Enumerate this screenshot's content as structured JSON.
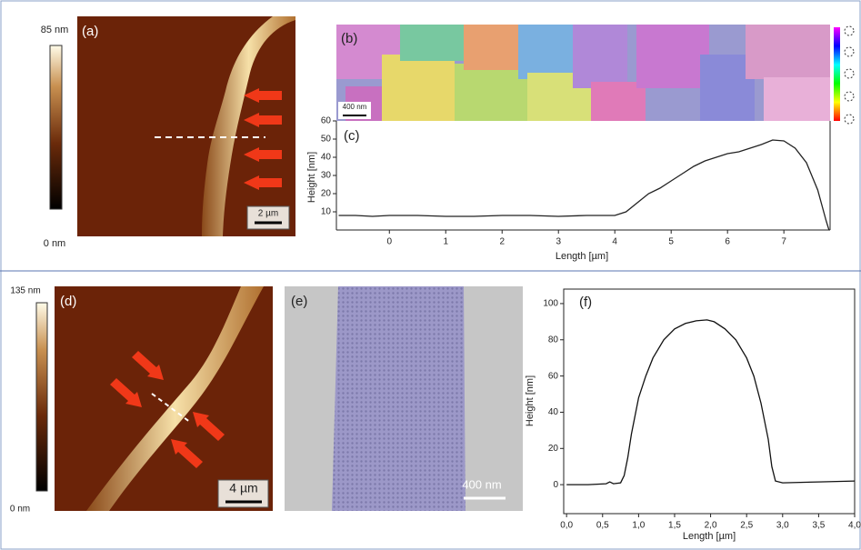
{
  "panels": {
    "a": {
      "label": "(a)",
      "scale_bar": "2 µm",
      "colorbar_max": "85 nm",
      "colorbar_min": "0 nm"
    },
    "b": {
      "label": "(b)",
      "scale_bar": "400 nm"
    },
    "d": {
      "label": "(d)",
      "scale_bar": "4 µm",
      "colorbar_max": "135 nm",
      "colorbar_min": "0 nm"
    },
    "e": {
      "label": "(e)",
      "scale_bar": "400 nm"
    }
  },
  "chart_data": [
    {
      "type": "line",
      "title": "(c)",
      "x_label": "Length [µm]",
      "y_label": "Height [nm]",
      "color": "#222222",
      "x": [
        -0.9,
        -0.6,
        -0.3,
        0,
        0.5,
        1,
        1.5,
        2,
        2.5,
        3,
        3.5,
        4,
        4.2,
        4.4,
        4.6,
        4.8,
        5,
        5.2,
        5.4,
        5.6,
        5.8,
        6,
        6.2,
        6.4,
        6.6,
        6.8,
        7,
        7.2,
        7.4,
        7.6,
        7.75,
        7.8
      ],
      "values": [
        8,
        8,
        7.5,
        8,
        8,
        7.5,
        7.5,
        8,
        8,
        7.5,
        8,
        8,
        10,
        15,
        20,
        23,
        27,
        31,
        35,
        38,
        40,
        42,
        43,
        45,
        47,
        49.5,
        49,
        45,
        37,
        22,
        5,
        0
      ],
      "xlim": [
        -0.94,
        7.82
      ],
      "ylim": [
        0,
        60
      ],
      "xticks": [
        0,
        1,
        2,
        3,
        4,
        5,
        6,
        7
      ],
      "yticks": [
        10,
        20,
        30,
        40,
        50,
        60
      ],
      "frame": false
    },
    {
      "type": "line",
      "title": "(f)",
      "x_label": "Length [µm]",
      "y_label": "Height [nm]",
      "color": "#111111",
      "x": [
        0,
        0.3,
        0.55,
        0.6,
        0.65,
        0.75,
        0.8,
        0.85,
        0.9,
        1,
        1.1,
        1.2,
        1.35,
        1.5,
        1.65,
        1.8,
        1.95,
        2.05,
        2.2,
        2.35,
        2.5,
        2.6,
        2.7,
        2.8,
        2.85,
        2.9,
        3,
        3.5,
        4
      ],
      "values": [
        0,
        0,
        0.5,
        1.5,
        0.5,
        1,
        5,
        15,
        28,
        48,
        60,
        70,
        80,
        86,
        89,
        90.5,
        91,
        90,
        86,
        80,
        70,
        60,
        45,
        25,
        10,
        2,
        1,
        1.5,
        2
      ],
      "xlim": [
        -0.04,
        4.0
      ],
      "ylim": [
        -16,
        108
      ],
      "xticks": [
        {
          "value": 0,
          "label": "0,0"
        },
        {
          "value": 0.5,
          "label": "0,5"
        },
        {
          "value": 1,
          "label": "1,0"
        },
        {
          "value": 1.5,
          "label": "1,5"
        },
        {
          "value": 2,
          "label": "2,0"
        },
        {
          "value": 2.5,
          "label": "2,5"
        },
        {
          "value": 3,
          "label": "3,0"
        },
        {
          "value": 3.5,
          "label": "3,5"
        },
        {
          "value": 4,
          "label": "4,0"
        }
      ],
      "yticks": [
        0,
        20,
        40,
        60,
        80,
        100
      ],
      "frame": true
    }
  ]
}
